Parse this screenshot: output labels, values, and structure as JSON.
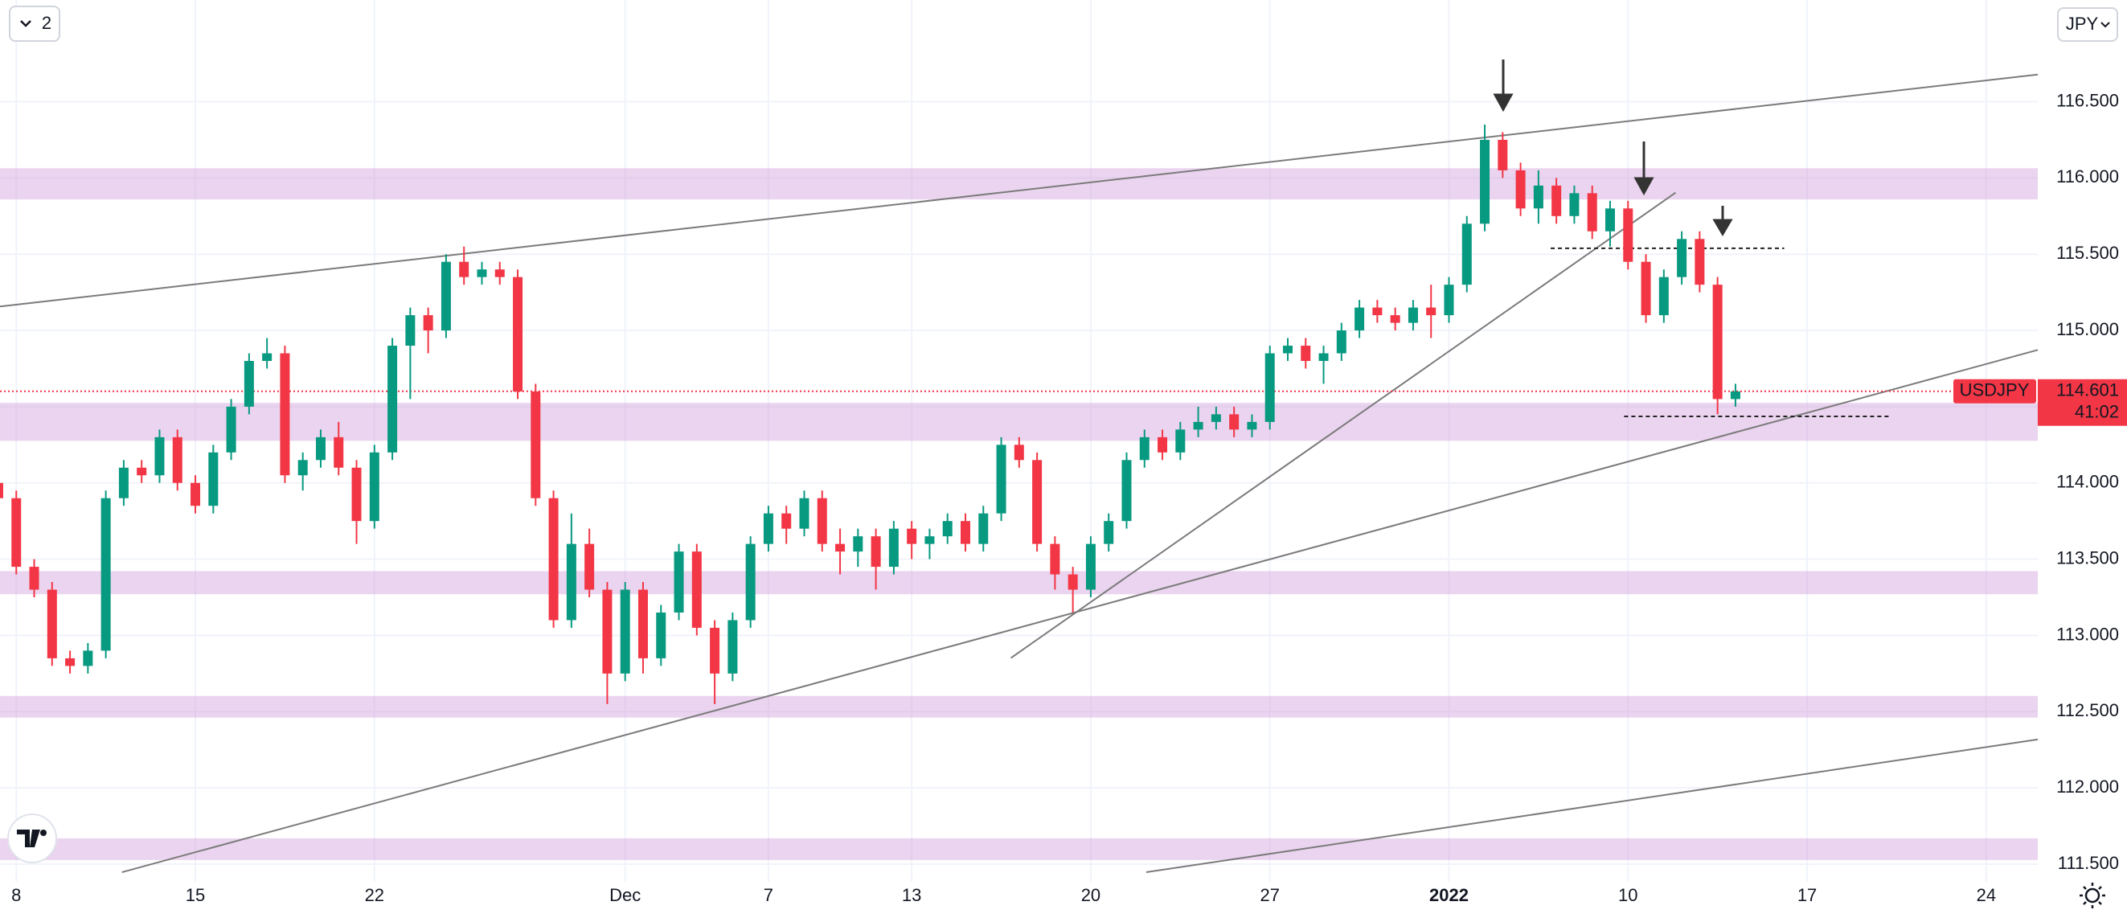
{
  "chart_data": {
    "type": "candlestick",
    "layout_button": "2",
    "currency": "JPY",
    "countdown": "41:02",
    "last_price": 114.601,
    "up_color": "#089981",
    "down_color": "#f23645",
    "grid": true,
    "xlim": [
      -0.4545,
      56.44
    ],
    "xticks": [
      {
        "value": 0,
        "label": "8"
      },
      {
        "value": 5,
        "label": "15"
      },
      {
        "value": 10,
        "label": "22"
      },
      {
        "value": 17,
        "label": "Dec"
      },
      {
        "value": 21,
        "label": "7"
      },
      {
        "value": 25,
        "label": "13"
      },
      {
        "value": 30,
        "label": "20"
      },
      {
        "value": 35,
        "label": "27"
      },
      {
        "value": 40,
        "label": "2022"
      },
      {
        "value": 45,
        "label": "10"
      },
      {
        "value": 50,
        "label": "17"
      },
      {
        "value": 55,
        "label": "24"
      }
    ],
    "ylim": [
      111.384,
      117.167
    ],
    "yticks": [
      {
        "value": 111.5,
        "label": "111.500"
      },
      {
        "value": 112,
        "label": "112.000"
      },
      {
        "value": 112.5,
        "label": "112.500"
      },
      {
        "value": 113,
        "label": "113.000"
      },
      {
        "value": 113.5,
        "label": "113.500"
      },
      {
        "value": 114,
        "label": "114.000"
      },
      {
        "value": 114.5,
        "label": "114.500"
      },
      {
        "value": 115,
        "label": "115.000"
      },
      {
        "value": 115.5,
        "label": "115.500"
      },
      {
        "value": 116,
        "label": "116.000"
      },
      {
        "value": 116.5,
        "label": "116.500"
      }
    ],
    "zones": {
      "color": "#ce93d8",
      "ranges": [
        [
          115.859,
          116.064
        ],
        [
          114.276,
          114.525
        ],
        [
          113.27,
          113.422
        ],
        [
          112.461,
          112.603
        ],
        [
          111.527,
          111.669
        ]
      ]
    },
    "trendlines": [
      {
        "x": [
          -0.4545,
          56.44
        ],
        "y": [
          115.157,
          116.678
        ]
      },
      {
        "x": [
          2.95,
          56.44
        ],
        "y": [
          111.447,
          114.872
        ]
      },
      {
        "x": [
          27.77,
          46.33
        ],
        "y": [
          112.852,
          115.904
        ]
      },
      {
        "x": [
          31.55,
          56.44
        ],
        "y": [
          111.447,
          112.318
        ]
      }
    ],
    "dashed_levels": [
      {
        "x": [
          42.84,
          49.36
        ],
        "y": 115.539
      },
      {
        "x": [
          44.89,
          52.31
        ],
        "y": 114.436
      }
    ],
    "series": [
      {
        "name": "USDJPY",
        "x": [
          -0.5,
          0,
          0.5,
          1,
          1.5,
          2,
          2.5,
          3,
          3.5,
          4,
          4.5,
          5,
          5.5,
          6,
          6.5,
          7,
          7.5,
          8,
          8.5,
          9,
          9.5,
          10,
          10.5,
          11,
          11.5,
          12,
          12.5,
          13,
          13.5,
          14,
          14.5,
          15,
          15.5,
          16,
          16.5,
          17,
          17.5,
          18,
          18.5,
          19,
          19.5,
          20,
          20.5,
          21,
          21.5,
          22,
          22.5,
          23,
          23.5,
          24,
          24.5,
          25,
          25.5,
          26,
          26.5,
          27,
          27.5,
          28,
          28.5,
          29,
          29.5,
          30,
          30.5,
          31,
          31.5,
          32,
          32.5,
          33,
          33.5,
          34,
          34.5,
          35,
          35.5,
          36,
          36.5,
          37,
          37.5,
          38,
          38.5,
          39,
          39.5,
          40,
          40.5,
          41,
          41.5,
          42,
          42.5,
          43,
          43.5,
          44,
          44.5,
          45,
          45.5,
          46,
          46.5,
          47,
          47.5,
          48
        ],
        "open": [
          114.0,
          113.9,
          113.45,
          113.3,
          112.85,
          112.8,
          112.9,
          113.9,
          114.1,
          114.05,
          114.3,
          114.0,
          113.85,
          114.2,
          114.5,
          114.8,
          114.85,
          114.05,
          114.15,
          114.3,
          114.1,
          113.75,
          114.2,
          114.9,
          115.1,
          115.0,
          115.45,
          115.35,
          115.4,
          115.35,
          114.6,
          113.9,
          113.1,
          113.6,
          113.3,
          112.75,
          113.3,
          112.85,
          113.15,
          113.55,
          113.05,
          112.75,
          113.1,
          113.6,
          113.8,
          113.7,
          113.9,
          113.6,
          113.55,
          113.65,
          113.45,
          113.7,
          113.6,
          113.65,
          113.75,
          113.6,
          113.8,
          114.25,
          114.15,
          113.6,
          113.4,
          113.3,
          113.6,
          113.75,
          114.15,
          114.3,
          114.2,
          114.35,
          114.4,
          114.45,
          114.35,
          114.4,
          114.85,
          114.9,
          114.8,
          114.85,
          115.0,
          115.15,
          115.1,
          115.05,
          115.15,
          115.1,
          115.3,
          115.7,
          116.25,
          116.05,
          115.8,
          115.95,
          115.75,
          115.9,
          115.65,
          115.8,
          115.45,
          115.1,
          115.35,
          115.6,
          115.3,
          114.55
        ],
        "high": [
          114.05,
          113.95,
          113.5,
          113.35,
          112.9,
          112.95,
          113.95,
          114.15,
          114.15,
          114.35,
          114.35,
          114.05,
          114.25,
          114.55,
          114.85,
          114.95,
          114.9,
          114.2,
          114.35,
          114.4,
          114.15,
          114.25,
          114.95,
          115.15,
          115.15,
          115.5,
          115.55,
          115.45,
          115.45,
          115.4,
          114.65,
          113.95,
          113.8,
          113.7,
          113.35,
          113.35,
          113.35,
          113.2,
          113.6,
          113.6,
          113.1,
          113.15,
          113.65,
          113.85,
          113.85,
          113.95,
          113.95,
          113.7,
          113.7,
          113.7,
          113.75,
          113.75,
          113.7,
          113.8,
          113.8,
          113.85,
          114.3,
          114.3,
          114.2,
          113.65,
          113.45,
          113.65,
          113.8,
          114.2,
          114.35,
          114.35,
          114.4,
          114.5,
          114.5,
          114.5,
          114.45,
          114.9,
          114.95,
          114.95,
          114.9,
          115.05,
          115.2,
          115.2,
          115.15,
          115.2,
          115.3,
          115.35,
          115.75,
          116.35,
          116.3,
          116.1,
          116.05,
          116.0,
          115.95,
          115.95,
          115.85,
          115.85,
          115.5,
          115.4,
          115.65,
          115.65,
          115.35,
          114.65
        ],
        "low": [
          113.85,
          113.4,
          113.25,
          112.8,
          112.75,
          112.75,
          112.85,
          113.85,
          114.0,
          114.0,
          113.95,
          113.8,
          113.8,
          114.15,
          114.45,
          114.75,
          114.0,
          113.95,
          114.1,
          114.05,
          113.6,
          113.7,
          114.15,
          114.55,
          114.85,
          114.95,
          115.3,
          115.3,
          115.3,
          114.55,
          113.85,
          113.05,
          113.05,
          113.25,
          112.55,
          112.7,
          112.75,
          112.8,
          113.1,
          113.0,
          112.55,
          112.7,
          113.05,
          113.55,
          113.6,
          113.65,
          113.55,
          113.4,
          113.45,
          113.3,
          113.4,
          113.5,
          113.5,
          113.6,
          113.55,
          113.55,
          113.75,
          114.1,
          113.55,
          113.3,
          113.15,
          113.25,
          113.55,
          113.7,
          114.1,
          114.15,
          114.15,
          114.3,
          114.35,
          114.3,
          114.3,
          114.35,
          114.8,
          114.75,
          114.65,
          114.8,
          114.95,
          115.05,
          115.0,
          115.0,
          114.95,
          115.05,
          115.25,
          115.65,
          116.0,
          115.75,
          115.7,
          115.7,
          115.7,
          115.6,
          115.55,
          115.4,
          115.05,
          115.05,
          115.3,
          115.25,
          114.45,
          114.5
        ],
        "close": [
          113.9,
          113.45,
          113.3,
          112.85,
          112.8,
          112.9,
          113.9,
          114.1,
          114.05,
          114.3,
          114.0,
          113.85,
          114.2,
          114.5,
          114.8,
          114.85,
          114.05,
          114.15,
          114.3,
          114.1,
          113.75,
          114.2,
          114.9,
          115.1,
          115.0,
          115.45,
          115.35,
          115.4,
          115.35,
          114.6,
          113.9,
          113.1,
          113.6,
          113.3,
          112.75,
          113.3,
          112.85,
          113.15,
          113.55,
          113.05,
          112.75,
          113.1,
          113.6,
          113.8,
          113.7,
          113.9,
          113.6,
          113.55,
          113.65,
          113.45,
          113.7,
          113.6,
          113.65,
          113.75,
          113.6,
          113.8,
          114.25,
          114.15,
          113.6,
          113.4,
          113.3,
          113.6,
          113.75,
          114.15,
          114.3,
          114.2,
          114.35,
          114.4,
          114.45,
          114.35,
          114.4,
          114.85,
          114.9,
          114.8,
          114.85,
          115.0,
          115.15,
          115.1,
          115.05,
          115.15,
          115.1,
          115.3,
          115.7,
          116.25,
          116.05,
          115.8,
          115.95,
          115.75,
          115.9,
          115.65,
          115.8,
          115.45,
          115.1,
          115.35,
          115.6,
          115.3,
          114.55,
          114.6
        ]
      }
    ]
  }
}
